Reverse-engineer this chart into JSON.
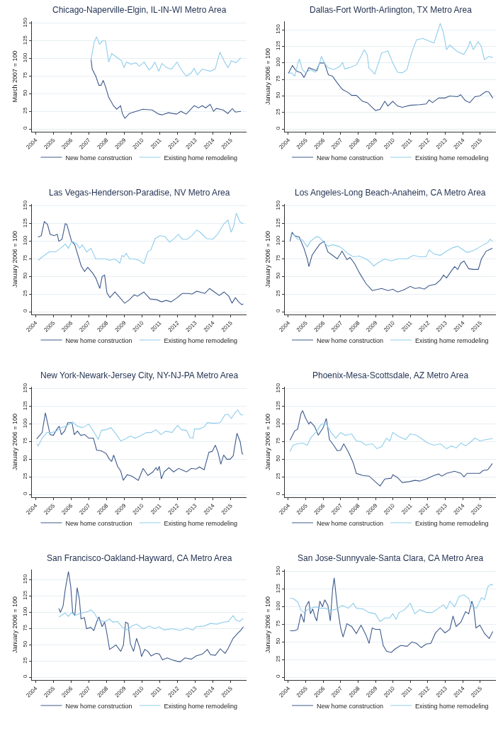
{
  "chart_data": [
    {
      "type": "line",
      "title": "Chicago-Naperville-Elgin, IL-IN-WI Metro Area",
      "ylabel": "March 2007 = 100",
      "xlim": [
        2003.8,
        2015.9
      ],
      "ylim": [
        -4,
        153
      ],
      "xticks": [
        2004,
        2005,
        2006,
        2007,
        2008,
        2009,
        2010,
        2011,
        2012,
        2013,
        2014,
        2015
      ],
      "yticks": [
        0,
        25,
        50,
        75,
        100,
        125,
        150
      ],
      "grid": "y",
      "legend": "bottom",
      "series": [
        {
          "name": "New home construction",
          "color": "#3e5a8c",
          "x": [
            2007.13,
            2007.2,
            2007.4,
            2007.58,
            2007.7,
            2007.82,
            2007.95,
            2008.13,
            2008.4,
            2008.58,
            2008.8,
            2008.9,
            2009.04,
            2009.3,
            2009.67,
            2010.04,
            2010.58,
            2010.95,
            2011.13,
            2011.5,
            2011.95,
            2012.2,
            2012.5,
            2012.95,
            2013.2,
            2013.4,
            2013.6,
            2013.85,
            2014.04,
            2014.2,
            2014.58,
            2014.85,
            2015.1,
            2015.27,
            2015.58
          ],
          "values": [
            100,
            85,
            75,
            62,
            62,
            69,
            60,
            45,
            33,
            28,
            33,
            22,
            15,
            22,
            25,
            28,
            27,
            21,
            20,
            23,
            21,
            25,
            21,
            33,
            30,
            33,
            30,
            35,
            25,
            29,
            27,
            22,
            29,
            24,
            25
          ]
        },
        {
          "name": "Existing home remodeling",
          "color": "#8fcdec",
          "x": [
            2007.13,
            2007.3,
            2007.44,
            2007.62,
            2007.76,
            2007.95,
            2008.13,
            2008.3,
            2008.58,
            2008.85,
            2009.0,
            2009.13,
            2009.4,
            2009.67,
            2009.85,
            2010.13,
            2010.4,
            2010.58,
            2010.73,
            2010.95,
            2011.13,
            2011.4,
            2011.67,
            2011.98,
            2012.2,
            2012.5,
            2012.76,
            2012.95,
            2013.13,
            2013.4,
            2013.85,
            2014.13,
            2014.4,
            2014.67,
            2014.85,
            2015.04,
            2015.3,
            2015.58
          ],
          "values": [
            98,
            122,
            131,
            120,
            125,
            125,
            95,
            107,
            102,
            97,
            87,
            95,
            92,
            94,
            89,
            95,
            84,
            88,
            95,
            82,
            93,
            87,
            85,
            95,
            85,
            75,
            79,
            86,
            77,
            85,
            82,
            85,
            109,
            95,
            87,
            97,
            94,
            101
          ]
        }
      ]
    },
    {
      "type": "line",
      "title": "Dallas-Fort Worth-Arlington, TX Metro Area",
      "ylabel": "January 2006 = 100",
      "xlim": [
        2003.8,
        2015.9
      ],
      "ylim": [
        -4,
        163
      ],
      "xticks": [
        2004,
        2005,
        2006,
        2007,
        2008,
        2009,
        2010,
        2011,
        2012,
        2013,
        2014,
        2015
      ],
      "yticks": [
        0,
        25,
        50,
        75,
        100,
        125,
        150
      ],
      "grid": "y",
      "legend": "bottom",
      "series": [
        {
          "name": "New home construction",
          "color": "#3e5a8c",
          "x": [
            2004.0,
            2004.24,
            2004.45,
            2004.73,
            2004.9,
            2005.18,
            2005.45,
            2005.63,
            2005.8,
            2006.07,
            2006.3,
            2006.53,
            2006.8,
            2007.1,
            2007.45,
            2007.63,
            2007.9,
            2008.26,
            2008.53,
            2008.8,
            2009.0,
            2009.26,
            2009.53,
            2009.71,
            2009.99,
            2010.26,
            2010.53,
            2010.99,
            2011.53,
            2011.9,
            2012.08,
            2012.26,
            2012.62,
            2012.98,
            2013.25,
            2013.7,
            2013.88,
            2014.15,
            2014.4,
            2014.7,
            2014.97,
            2015.33,
            2015.5,
            2015.72
          ],
          "values": [
            84,
            96,
            88,
            85,
            78,
            93,
            90,
            88,
            100,
            100,
            82,
            80,
            70,
            60,
            55,
            51,
            51,
            42,
            40,
            33,
            28,
            30,
            42,
            35,
            42,
            35,
            33,
            36,
            37,
            38,
            44,
            40,
            47,
            47,
            50,
            49,
            52,
            43,
            40,
            49,
            50,
            57,
            56,
            47
          ]
        },
        {
          "name": "Existing home remodeling",
          "color": "#8fcdec",
          "x": [
            2004.0,
            2004.18,
            2004.37,
            2004.55,
            2004.64,
            2004.8,
            2004.99,
            2005.27,
            2005.54,
            2005.8,
            2005.9,
            2006.07,
            2006.26,
            2006.6,
            2006.97,
            2007.11,
            2007.23,
            2007.5,
            2007.9,
            2008.17,
            2008.35,
            2008.53,
            2008.62,
            2008.8,
            2008.95,
            2009.17,
            2009.35,
            2009.71,
            2009.99,
            2010.26,
            2010.53,
            2010.8,
            2011.07,
            2011.35,
            2011.71,
            2012.07,
            2012.35,
            2012.53,
            2012.71,
            2012.9,
            2013.07,
            2013.25,
            2013.7,
            2014.06,
            2014.33,
            2014.42,
            2014.6,
            2014.88,
            2015.06,
            2015.24,
            2015.5,
            2015.72
          ],
          "values": [
            84,
            85,
            80,
            100,
            106,
            90,
            85,
            90,
            86,
            100,
            110,
            100,
            93,
            90,
            95,
            101,
            91,
            93,
            97,
            110,
            120,
            112,
            92,
            88,
            83,
            100,
            115,
            118,
            100,
            86,
            85,
            90,
            115,
            135,
            137,
            133,
            130,
            145,
            160,
            145,
            120,
            127,
            117,
            113,
            125,
            133,
            120,
            132,
            125,
            105,
            110,
            108
          ]
        }
      ]
    },
    {
      "type": "line",
      "title": "Las Vegas-Henderson-Paradise, NV Metro Area",
      "ylabel": "January 2006 = 100",
      "xlim": [
        2003.8,
        2015.9
      ],
      "ylim": [
        -4,
        153
      ],
      "xticks": [
        2004,
        2005,
        2006,
        2007,
        2008,
        2009,
        2010,
        2011,
        2012,
        2013,
        2014,
        2015
      ],
      "yticks": [
        0,
        25,
        50,
        75,
        100,
        125,
        150
      ],
      "grid": "y",
      "legend": "bottom",
      "series": [
        {
          "name": "New home construction",
          "color": "#3e5a8c",
          "x": [
            2004.15,
            2004.33,
            2004.5,
            2004.68,
            2004.83,
            2005.05,
            2005.23,
            2005.32,
            2005.5,
            2005.68,
            2005.77,
            2006.04,
            2006.22,
            2006.4,
            2006.58,
            2006.77,
            2006.95,
            2007.22,
            2007.4,
            2007.63,
            2007.76,
            2007.9,
            2008.03,
            2008.2,
            2008.48,
            2008.76,
            2009.03,
            2009.3,
            2009.57,
            2009.75,
            2010.11,
            2010.47,
            2010.84,
            2011.1,
            2011.38,
            2011.65,
            2012.0,
            2012.28,
            2012.64,
            2012.82,
            2013.1,
            2013.55,
            2013.82,
            2014.09,
            2014.36,
            2014.63,
            2014.9,
            2015.08,
            2015.27,
            2015.45,
            2015.63,
            2015.72
          ],
          "values": [
            106,
            108,
            128,
            124,
            110,
            108,
            110,
            100,
            103,
            125,
            124,
            100,
            95,
            80,
            65,
            57,
            63,
            55,
            48,
            33,
            50,
            52,
            27,
            20,
            28,
            20,
            12,
            17,
            24,
            22,
            28,
            18,
            17,
            14,
            16,
            14,
            20,
            26,
            26,
            25,
            29,
            26,
            33,
            28,
            23,
            28,
            22,
            12,
            20,
            14,
            10,
            11
          ]
        },
        {
          "name": "Existing home remodeling",
          "color": "#8fcdec",
          "x": [
            2004.15,
            2004.5,
            2004.78,
            2005.14,
            2005.41,
            2005.68,
            2005.86,
            2006.04,
            2006.31,
            2006.49,
            2006.64,
            2006.89,
            2007.13,
            2007.4,
            2007.67,
            2007.94,
            2008.2,
            2008.48,
            2008.76,
            2008.88,
            2008.99,
            2009.12,
            2009.3,
            2009.57,
            2009.84,
            2010.11,
            2010.33,
            2010.51,
            2010.75,
            2011.02,
            2011.29,
            2011.56,
            2011.83,
            2012.05,
            2012.28,
            2012.55,
            2012.82,
            2013.1,
            2013.28,
            2013.64,
            2014.0,
            2014.27,
            2014.63,
            2014.85,
            2015.03,
            2015.18,
            2015.32,
            2015.54,
            2015.72
          ],
          "values": [
            73,
            80,
            85,
            85,
            90,
            96,
            90,
            100,
            97,
            90,
            95,
            85,
            90,
            75,
            75,
            75,
            73,
            75,
            69,
            80,
            78,
            83,
            75,
            75,
            73,
            68,
            85,
            88,
            104,
            108,
            107,
            99,
            104,
            110,
            103,
            103,
            108,
            116,
            113,
            104,
            103,
            110,
            125,
            130,
            113,
            122,
            140,
            127,
            125
          ]
        }
      ]
    },
    {
      "type": "line",
      "title": "Los Angeles-Long Beach-Anaheim, CA Metro Area",
      "ylabel": "January 2006 = 100",
      "xlim": [
        2003.8,
        2015.9
      ],
      "ylim": [
        -4,
        153
      ],
      "xticks": [
        2004,
        2005,
        2006,
        2007,
        2008,
        2009,
        2010,
        2011,
        2012,
        2013,
        2014,
        2015
      ],
      "yticks": [
        0,
        25,
        50,
        75,
        100,
        125,
        150
      ],
      "grid": "y",
      "legend": "bottom",
      "series": [
        {
          "name": "New home construction",
          "color": "#3e5a8c",
          "x": [
            2004.1,
            2004.22,
            2004.36,
            2004.63,
            2004.9,
            2005.09,
            2005.18,
            2005.36,
            2005.63,
            2005.81,
            2006.05,
            2006.27,
            2006.54,
            2006.81,
            2007.08,
            2007.36,
            2007.54,
            2007.81,
            2008.08,
            2008.45,
            2008.81,
            2008.99,
            2009.35,
            2009.72,
            2009.99,
            2010.26,
            2010.62,
            2010.99,
            2011.26,
            2011.53,
            2011.8,
            2012.07,
            2012.44,
            2012.71,
            2012.9,
            2013.07,
            2013.35,
            2013.53,
            2013.71,
            2013.89,
            2014.07,
            2014.34,
            2014.62,
            2014.89,
            2015.07,
            2015.34,
            2015.61,
            2015.7
          ],
          "values": [
            100,
            113,
            108,
            106,
            90,
            75,
            64,
            80,
            90,
            96,
            100,
            85,
            80,
            75,
            86,
            74,
            77,
            68,
            55,
            40,
            30,
            31,
            33,
            30,
            32,
            28,
            31,
            36,
            33,
            34,
            32,
            37,
            39,
            45,
            52,
            48,
            58,
            64,
            60,
            69,
            72,
            61,
            60,
            60,
            75,
            86,
            89,
            90
          ]
        },
        {
          "name": "Existing home remodeling",
          "color": "#8fcdec",
          "x": [
            2004.1,
            2004.27,
            2004.54,
            2004.82,
            2005.09,
            2005.27,
            2005.63,
            2005.81,
            2006.05,
            2006.27,
            2006.54,
            2006.9,
            2007.18,
            2007.45,
            2007.72,
            2008.08,
            2008.45,
            2008.63,
            2008.9,
            2009.17,
            2009.54,
            2009.9,
            2010.26,
            2010.81,
            2011.17,
            2011.53,
            2011.9,
            2012.07,
            2012.35,
            2012.71,
            2013.07,
            2013.44,
            2013.71,
            2014.07,
            2014.25,
            2014.62,
            2014.98,
            2015.25,
            2015.43,
            2015.56,
            2015.72
          ],
          "values": [
            110,
            110,
            103,
            102,
            92,
            100,
            107,
            105,
            98,
            93,
            95,
            93,
            88,
            82,
            78,
            79,
            75,
            72,
            65,
            70,
            75,
            72,
            75,
            75,
            80,
            78,
            78,
            88,
            82,
            80,
            86,
            91,
            93,
            87,
            84,
            87,
            92,
            96,
            98,
            103,
            100
          ]
        }
      ]
    },
    {
      "type": "line",
      "title": "New York-Newark-Jersey City, NY-NJ-PA Metro Area",
      "ylabel": "January 2006 = 100",
      "xlim": [
        2003.8,
        2015.9
      ],
      "ylim": [
        -4,
        153
      ],
      "xticks": [
        2004,
        2005,
        2006,
        2007,
        2008,
        2009,
        2010,
        2011,
        2012,
        2013,
        2014,
        2015
      ],
      "yticks": [
        0,
        25,
        50,
        75,
        100,
        125,
        150
      ],
      "grid": "y",
      "legend": "bottom",
      "series": [
        {
          "name": "New home construction",
          "color": "#3e5a8c",
          "x": [
            2004.07,
            2004.38,
            2004.56,
            2004.74,
            2004.83,
            2005.01,
            2005.19,
            2005.34,
            2005.46,
            2005.64,
            2005.83,
            2006.06,
            2006.19,
            2006.37,
            2006.55,
            2006.78,
            2007.0,
            2007.27,
            2007.45,
            2007.72,
            2007.99,
            2008.17,
            2008.3,
            2008.41,
            2008.63,
            2008.81,
            2008.95,
            2009.17,
            2009.44,
            2009.8,
            2010.07,
            2010.34,
            2010.62,
            2010.8,
            2010.89,
            2010.98,
            2011.1,
            2011.25,
            2011.52,
            2011.79,
            2012.07,
            2012.34,
            2012.52,
            2012.79,
            2013.06,
            2013.24,
            2013.51,
            2013.78,
            2013.96,
            2014.14,
            2014.29,
            2014.45,
            2014.61,
            2014.79,
            2014.97,
            2015.15,
            2015.36,
            2015.54,
            2015.65,
            2015.72
          ],
          "values": [
            79,
            88,
            116,
            95,
            85,
            84,
            92,
            97,
            85,
            90,
            102,
            102,
            85,
            90,
            84,
            85,
            80,
            80,
            63,
            62,
            58,
            50,
            47,
            56,
            40,
            33,
            20,
            28,
            26,
            20,
            37,
            27,
            32,
            38,
            34,
            40,
            22,
            32,
            38,
            32,
            37,
            34,
            32,
            37,
            36,
            39,
            35,
            60,
            61,
            70,
            60,
            43,
            56,
            50,
            50,
            55,
            87,
            75,
            58,
            57
          ]
        },
        {
          "name": "Existing home remodeling",
          "color": "#8fcdec",
          "x": [
            2004.07,
            2004.16,
            2004.38,
            2004.65,
            2004.92,
            2005.19,
            2005.46,
            2005.74,
            2006.1,
            2006.37,
            2006.64,
            2006.82,
            2007.0,
            2007.27,
            2007.54,
            2007.72,
            2007.99,
            2008.26,
            2008.54,
            2008.81,
            2009.08,
            2009.35,
            2009.62,
            2009.9,
            2010.26,
            2010.53,
            2010.8,
            2011.07,
            2011.34,
            2011.7,
            2012.01,
            2012.24,
            2012.52,
            2012.7,
            2012.88,
            2012.97,
            2013.24,
            2013.51,
            2013.69,
            2014.05,
            2014.41,
            2014.68,
            2014.86,
            2015.04,
            2015.22,
            2015.4,
            2015.59,
            2015.72
          ],
          "values": [
            72,
            69,
            80,
            88,
            88,
            90,
            95,
            97,
            103,
            97,
            95,
            97,
            100,
            90,
            78,
            91,
            92,
            95,
            86,
            76,
            79,
            83,
            80,
            83,
            88,
            88,
            92,
            85,
            90,
            88,
            98,
            92,
            91,
            81,
            80,
            93,
            93,
            96,
            102,
            101,
            102,
            113,
            114,
            108,
            115,
            120,
            113,
            113
          ]
        }
      ]
    },
    {
      "type": "line",
      "title": "Phoenix-Mesa-Scottsdale, AZ Metro Area",
      "ylabel": "January 2006 = 100",
      "xlim": [
        2003.8,
        2015.9
      ],
      "ylim": [
        -4,
        153
      ],
      "xticks": [
        2004,
        2005,
        2006,
        2007,
        2008,
        2009,
        2010,
        2011,
        2012,
        2013,
        2014,
        2015
      ],
      "yticks": [
        0,
        25,
        50,
        75,
        100,
        125,
        150
      ],
      "grid": "y",
      "legend": "bottom",
      "series": [
        {
          "name": "New home construction",
          "color": "#3e5a8c",
          "x": [
            2004.1,
            2004.36,
            2004.54,
            2004.73,
            2004.82,
            2005.0,
            2005.18,
            2005.27,
            2005.5,
            2005.72,
            2006.0,
            2006.18,
            2006.36,
            2006.54,
            2006.81,
            2007.0,
            2007.18,
            2007.45,
            2007.72,
            2007.9,
            2008.26,
            2008.63,
            2008.99,
            2009.26,
            2009.53,
            2009.9,
            2009.99,
            2010.26,
            2010.53,
            2010.9,
            2011.26,
            2011.53,
            2011.9,
            2012.35,
            2012.62,
            2012.8,
            2013.07,
            2013.53,
            2013.89,
            2014.07,
            2014.25,
            2014.62,
            2014.98,
            2015.16,
            2015.43,
            2015.7
          ],
          "values": [
            77,
            90,
            93,
            115,
            119,
            108,
            100,
            103,
            97,
            84,
            95,
            108,
            78,
            72,
            62,
            63,
            72,
            60,
            45,
            30,
            27,
            26,
            18,
            12,
            22,
            23,
            28,
            24,
            17,
            18,
            20,
            19,
            22,
            27,
            29,
            26,
            30,
            33,
            30,
            25,
            30,
            30,
            30,
            34,
            35,
            44
          ]
        },
        {
          "name": "Existing home remodeling",
          "color": "#8fcdec",
          "x": [
            2004.1,
            2004.27,
            2004.54,
            2004.82,
            2005.09,
            2005.27,
            2005.63,
            2005.9,
            2006.18,
            2006.45,
            2006.72,
            2007.0,
            2007.27,
            2007.63,
            2007.9,
            2008.17,
            2008.45,
            2008.81,
            2009.08,
            2009.35,
            2009.63,
            2009.81,
            2009.99,
            2010.35,
            2010.72,
            2010.99,
            2011.35,
            2011.71,
            2011.98,
            2012.35,
            2012.71,
            2013.07,
            2013.35,
            2013.62,
            2013.89,
            2014.16,
            2014.43,
            2014.7,
            2014.98,
            2015.34,
            2015.61,
            2015.72
          ],
          "values": [
            61,
            70,
            72,
            73,
            70,
            80,
            90,
            100,
            100,
            88,
            80,
            88,
            84,
            86,
            76,
            75,
            70,
            72,
            65,
            68,
            80,
            76,
            88,
            82,
            78,
            86,
            84,
            78,
            73,
            70,
            72,
            65,
            69,
            66,
            73,
            69,
            74,
            80,
            76,
            78,
            79,
            79
          ]
        }
      ]
    },
    {
      "type": "line",
      "title": "San Francisco-Oakland-Hayward, CA Metro Area",
      "ylabel": "January 2006 = 100",
      "xlim": [
        2003.8,
        2015.9
      ],
      "ylim": [
        -4,
        166
      ],
      "xticks": [
        2004,
        2005,
        2006,
        2007,
        2008,
        2009,
        2010,
        2011,
        2012,
        2013,
        2014,
        2015
      ],
      "yticks": [
        0,
        25,
        50,
        75,
        100,
        125,
        150
      ],
      "grid": "y",
      "legend": "bottom",
      "series": [
        {
          "name": "New home construction",
          "color": "#3e5a8c",
          "x": [
            2005.32,
            2005.41,
            2005.56,
            2005.68,
            2005.86,
            2005.99,
            2006.1,
            2006.22,
            2006.35,
            2006.48,
            2006.57,
            2006.76,
            2006.88,
            2007.12,
            2007.29,
            2007.49,
            2007.58,
            2007.76,
            2007.9,
            2008.0,
            2008.18,
            2008.54,
            2008.81,
            2008.96,
            2009.08,
            2009.22,
            2009.35,
            2009.53,
            2009.7,
            2009.89,
            2009.98,
            2010.16,
            2010.34,
            2010.52,
            2010.8,
            2010.98,
            2011.16,
            2011.43,
            2011.7,
            2011.97,
            2012.16,
            2012.43,
            2012.79,
            2013.06,
            2013.42,
            2013.69,
            2013.87,
            2014.14,
            2014.42,
            2014.69,
            2014.87,
            2015.14,
            2015.41,
            2015.59,
            2015.72
          ],
          "values": [
            106,
            100,
            110,
            135,
            163,
            140,
            100,
            95,
            138,
            120,
            90,
            92,
            75,
            77,
            72,
            88,
            93,
            78,
            85,
            72,
            43,
            50,
            40,
            50,
            85,
            83,
            52,
            40,
            60,
            45,
            32,
            43,
            40,
            33,
            37,
            36,
            27,
            30,
            27,
            25,
            24,
            30,
            28,
            33,
            36,
            43,
            35,
            34,
            44,
            37,
            45,
            60,
            68,
            73,
            78
          ]
        },
        {
          "name": "Existing home remodeling",
          "color": "#8fcdec",
          "x": [
            2005.32,
            2005.68,
            2005.86,
            2006.04,
            2006.22,
            2006.48,
            2006.76,
            2007.03,
            2007.12,
            2007.29,
            2007.58,
            2007.94,
            2008.18,
            2008.36,
            2008.63,
            2008.9,
            2009.17,
            2009.44,
            2009.7,
            2010.07,
            2010.43,
            2010.71,
            2010.98,
            2011.25,
            2011.7,
            2012.16,
            2012.52,
            2012.88,
            2013.06,
            2013.51,
            2013.87,
            2014.23,
            2014.6,
            2014.87,
            2015.14,
            2015.32,
            2015.5,
            2015.72
          ],
          "values": [
            93,
            99,
            94,
            100,
            95,
            98,
            100,
            102,
            104,
            100,
            87,
            86,
            90,
            85,
            86,
            77,
            73,
            79,
            82,
            75,
            79,
            75,
            78,
            73,
            75,
            72,
            76,
            73,
            78,
            79,
            83,
            82,
            85,
            86,
            95,
            88,
            86,
            91
          ]
        }
      ]
    },
    {
      "type": "line",
      "title": "San Jose-Sunnyvale-Santa Clara, CA Metro Area",
      "ylabel": "January 2006 = 100",
      "xlim": [
        2003.8,
        2015.9
      ],
      "ylim": [
        -4,
        153
      ],
      "xticks": [
        2004,
        2005,
        2006,
        2007,
        2008,
        2009,
        2010,
        2011,
        2012,
        2013,
        2014,
        2015
      ],
      "yticks": [
        0,
        25,
        50,
        75,
        100,
        125,
        150
      ],
      "grid": "y",
      "legend": "bottom",
      "series": [
        {
          "name": "New home construction",
          "color": "#3e5a8c",
          "x": [
            2004.1,
            2004.36,
            2004.54,
            2004.73,
            2004.9,
            2005.0,
            2005.18,
            2005.27,
            2005.4,
            2005.54,
            2005.63,
            2005.81,
            2005.96,
            2006.09,
            2006.27,
            2006.41,
            2006.54,
            2006.63,
            2006.81,
            2007.0,
            2007.14,
            2007.36,
            2007.63,
            2007.9,
            2008.17,
            2008.45,
            2008.63,
            2008.81,
            2008.99,
            2009.26,
            2009.44,
            2009.63,
            2009.9,
            2010.12,
            2010.44,
            2010.81,
            2011.08,
            2011.35,
            2011.62,
            2011.9,
            2012.17,
            2012.44,
            2012.71,
            2012.98,
            2013.26,
            2013.44,
            2013.62,
            2013.89,
            2014.16,
            2014.34,
            2014.52,
            2014.62,
            2014.76,
            2014.98,
            2015.25,
            2015.52,
            2015.72
          ],
          "values": [
            66,
            66,
            68,
            90,
            78,
            100,
            108,
            90,
            97,
            85,
            80,
            108,
            100,
            110,
            102,
            80,
            125,
            141,
            100,
            70,
            57,
            76,
            72,
            62,
            74,
            60,
            48,
            70,
            68,
            68,
            45,
            37,
            35,
            40,
            45,
            44,
            50,
            48,
            42,
            47,
            48,
            63,
            70,
            63,
            68,
            87,
            72,
            78,
            93,
            90,
            108,
            100,
            70,
            74,
            62,
            55,
            65
          ]
        },
        {
          "name": "Existing home remodeling",
          "color": "#8fcdec",
          "x": [
            2004.1,
            2004.27,
            2004.54,
            2004.73,
            2004.9,
            2005.18,
            2005.54,
            2005.81,
            2006.09,
            2006.45,
            2006.81,
            2007.08,
            2007.45,
            2007.72,
            2007.9,
            2008.26,
            2008.63,
            2008.99,
            2009.26,
            2009.53,
            2009.81,
            2009.99,
            2010.17,
            2010.35,
            2010.63,
            2010.99,
            2011.26,
            2011.53,
            2011.9,
            2012.26,
            2012.62,
            2012.89,
            2013.07,
            2013.26,
            2013.53,
            2013.8,
            2014.07,
            2014.34,
            2014.52,
            2014.79,
            2015.07,
            2015.25,
            2015.43,
            2015.61,
            2015.72
          ],
          "values": [
            112,
            112,
            107,
            95,
            92,
            97,
            100,
            98,
            98,
            95,
            97,
            102,
            98,
            105,
            98,
            97,
            92,
            90,
            79,
            84,
            84,
            90,
            82,
            92,
            95,
            105,
            90,
            96,
            92,
            92,
            98,
            103,
            97,
            108,
            100,
            115,
            117,
            112,
            100,
            98,
            113,
            110,
            128,
            132,
            131
          ]
        }
      ]
    }
  ]
}
